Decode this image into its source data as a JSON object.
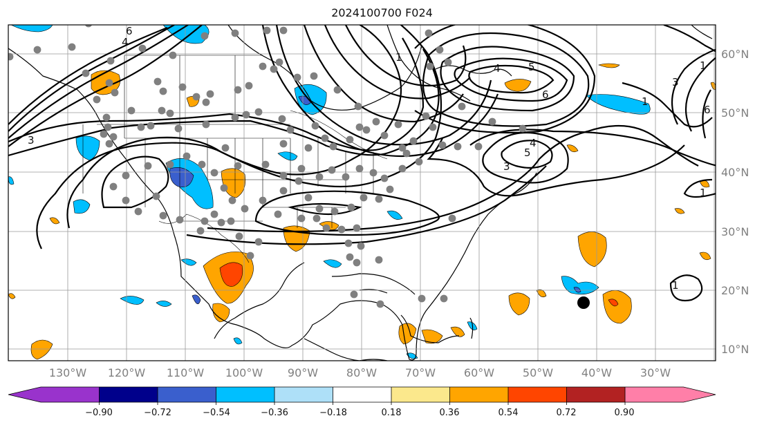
{
  "title": "2024100700 F024",
  "map": {
    "lon_labels": [
      "130°W",
      "120°W",
      "110°W",
      "100°W",
      "90°W",
      "80°W",
      "70°W",
      "60°W",
      "50°W",
      "40°W",
      "30°W"
    ],
    "lat_labels": [
      "60°N",
      "50°N",
      "40°N",
      "30°N",
      "20°N",
      "10°N"
    ],
    "contour_labels": [
      "6",
      "4",
      "3",
      "1",
      "4",
      "5",
      "6",
      "1",
      "4",
      "5",
      "3",
      "1",
      "1",
      "3",
      "6",
      "1"
    ]
  },
  "colorbar": {
    "ticks": [
      "−0.90",
      "−0.72",
      "−0.54",
      "−0.36",
      "−0.18",
      "0.18",
      "0.36",
      "0.54",
      "0.72",
      "0.90"
    ],
    "colors": [
      "#9933cc",
      "#00008b",
      "#3a5fcd",
      "#00bfff",
      "#aee0f8",
      "#ffffff",
      "#fbe88c",
      "#ffa500",
      "#ff4500",
      "#b22222",
      "#ff7fa8"
    ]
  }
}
